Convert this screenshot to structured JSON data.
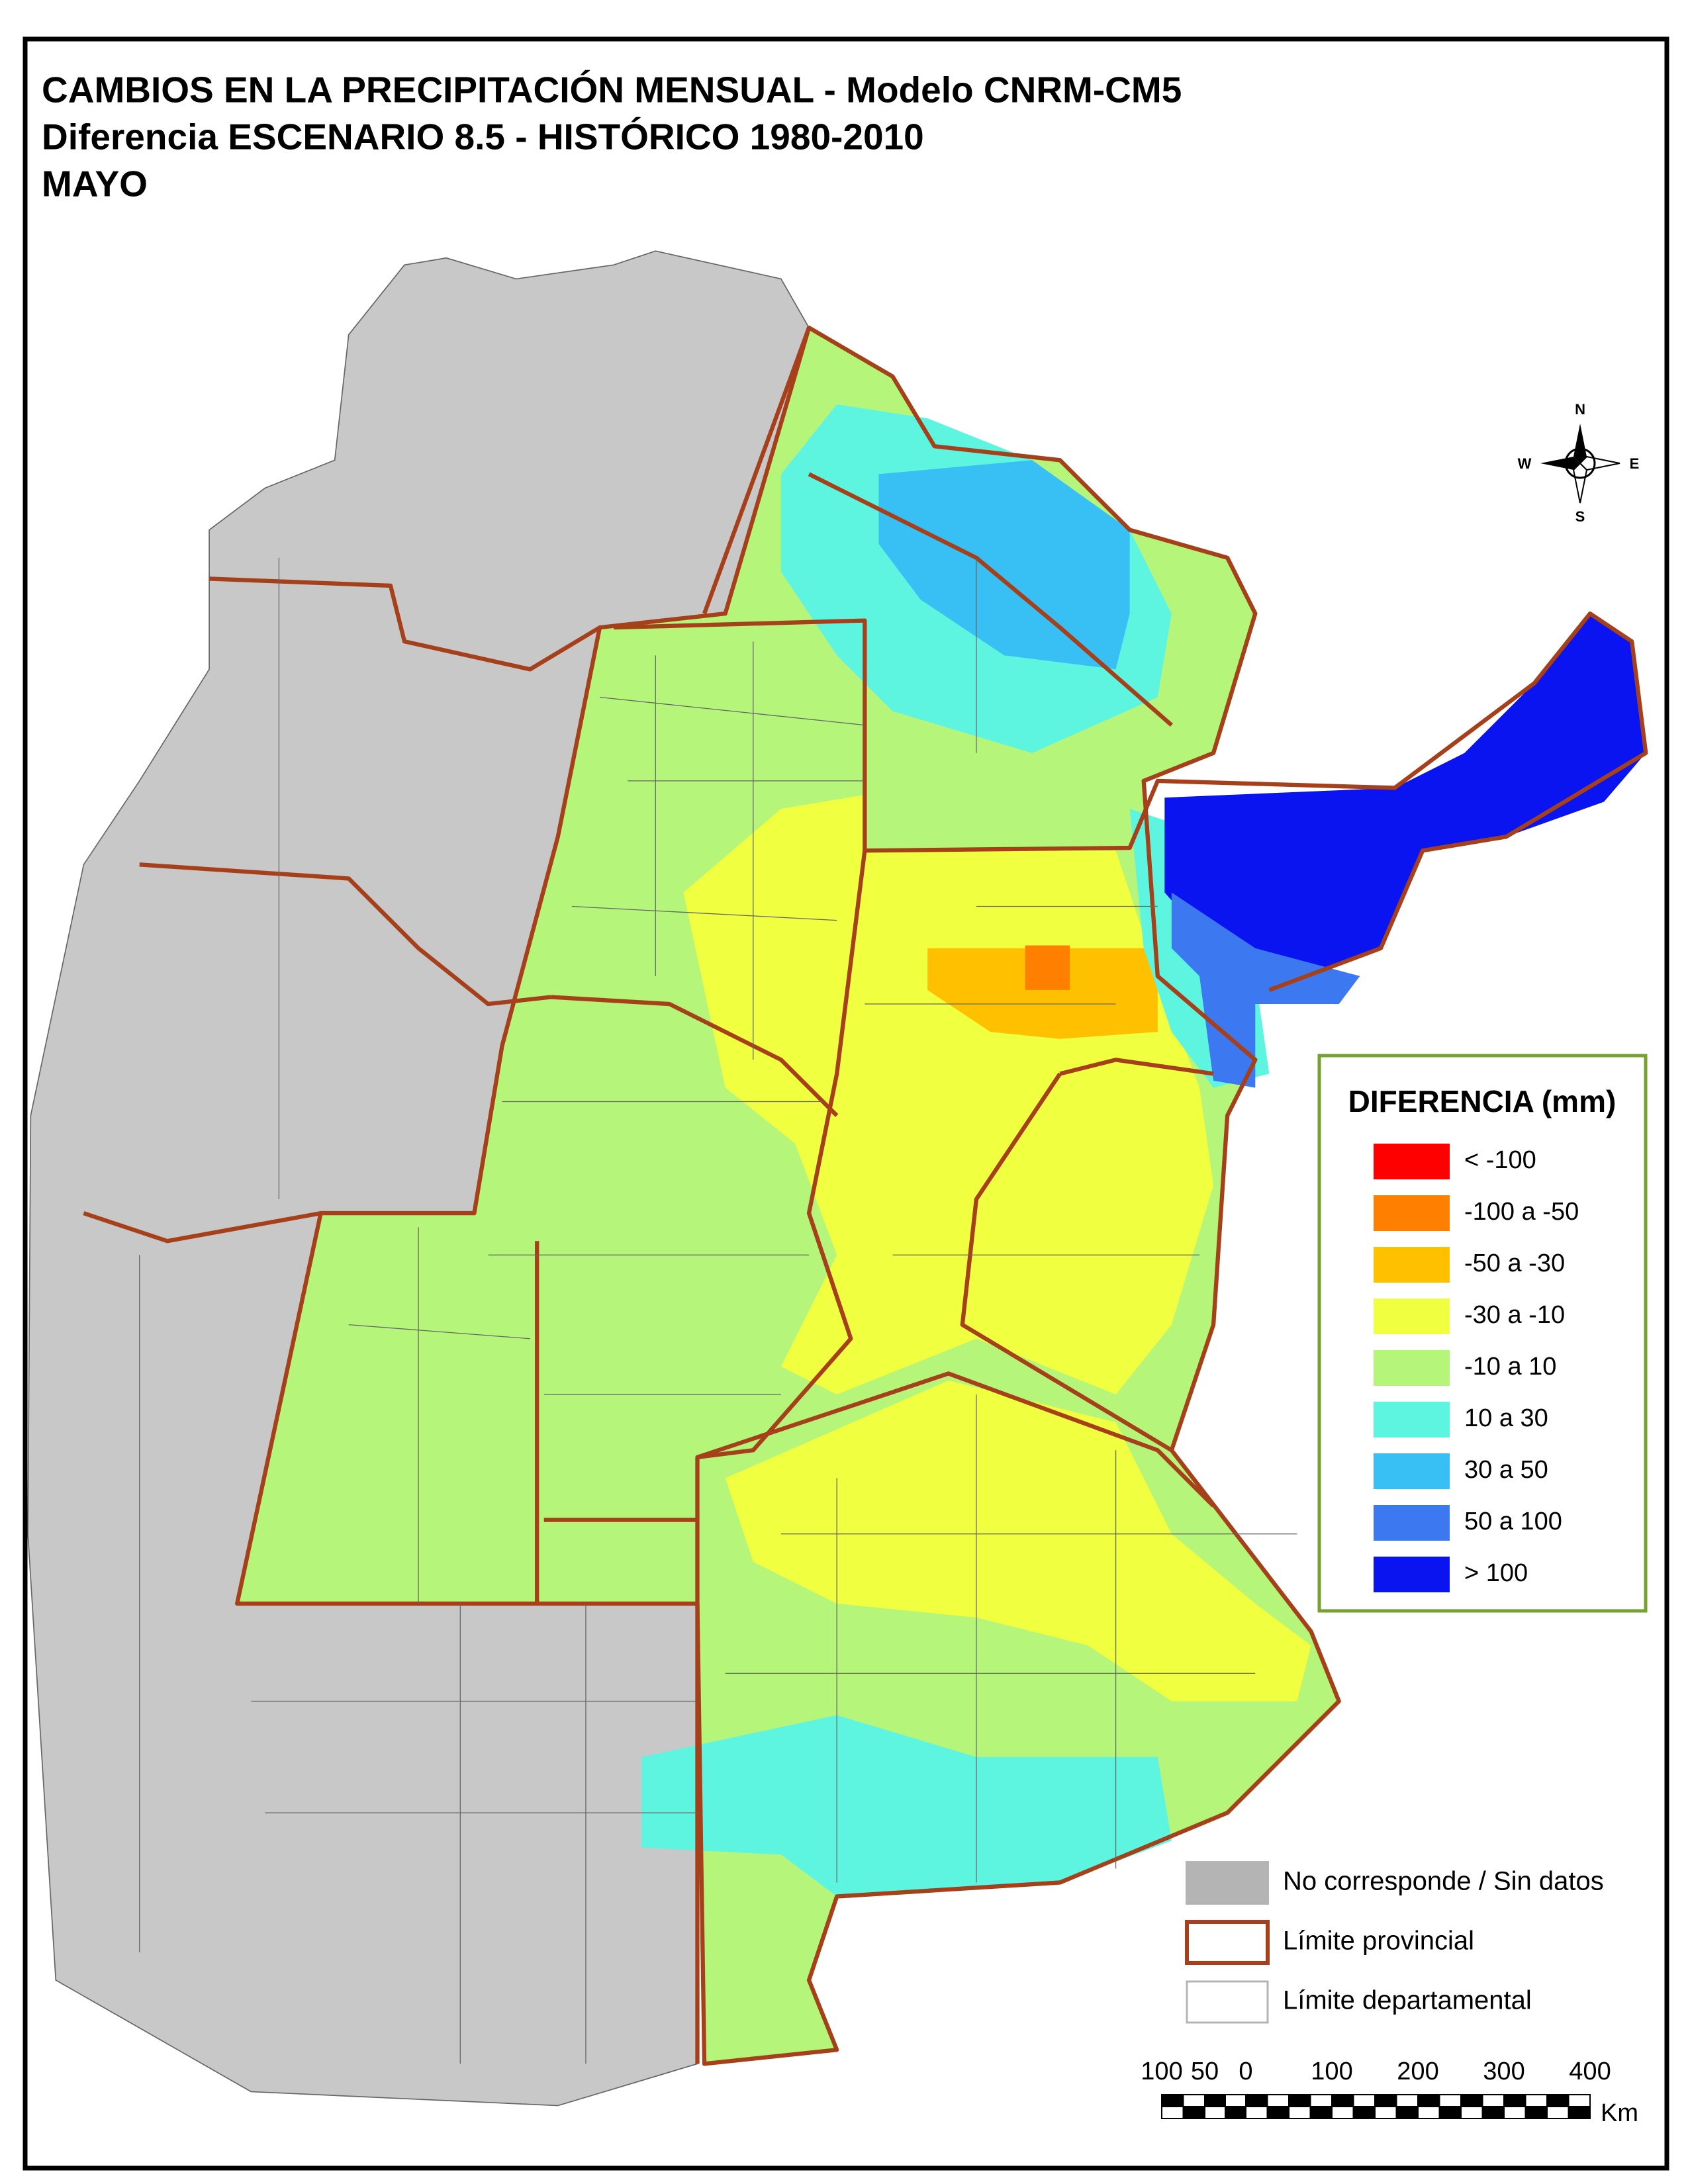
{
  "title": {
    "lines": [
      "CAMBIOS EN LA PRECIPITACIÓN MENSUAL - Modelo CNRM-CM5",
      "Diferencia ESCENARIO 8.5 - HISTÓRICO 1980-2010",
      "MAYO"
    ]
  },
  "legend": {
    "title": "DIFERENCIA (mm)",
    "items": [
      {
        "label": "< -100",
        "color": "#ff0000"
      },
      {
        "label": "-100 a -50",
        "color": "#ff7f00"
      },
      {
        "label": "-50 a -30",
        "color": "#ffc000"
      },
      {
        "label": "-30 a -10",
        "color": "#f0ff40"
      },
      {
        "label": "-10 a 10",
        "color": "#b4f57a"
      },
      {
        "label": "10 a 30",
        "color": "#5ef5e0"
      },
      {
        "label": "30 a 50",
        "color": "#38c0f5"
      },
      {
        "label": "50 a 100",
        "color": "#3c78f0"
      },
      {
        "label": "> 100",
        "color": "#0a14f0"
      }
    ]
  },
  "reference": {
    "items": [
      {
        "label": "No corresponde / Sin datos",
        "kind": "fill",
        "color": "#b4b4b4"
      },
      {
        "label": "Límite provincial",
        "kind": "outline",
        "color": "#a5401a"
      },
      {
        "label": "Límite departamental",
        "kind": "outline",
        "color": "#b4b4b4"
      }
    ]
  },
  "compass": {
    "n": "N",
    "s": "S",
    "e": "E",
    "w": "W"
  },
  "scale_bar": {
    "labels": [
      "100",
      "50",
      "0",
      "100",
      "200",
      "300",
      "400"
    ],
    "unit": "Km"
  }
}
